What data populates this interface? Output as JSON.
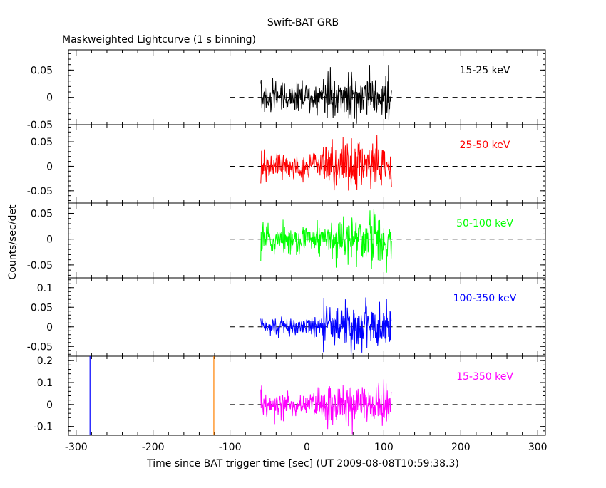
{
  "chart_data": {
    "type": "line",
    "title": "Swift-BAT GRB",
    "subtitle": "Maskweighted Lightcurve (1 s binning)",
    "xlabel": "Time since BAT trigger time [sec] (UT 2009-08-08T10:59:38.3)",
    "ylabel": "Counts/sec/det",
    "xlim": [
      -310,
      310
    ],
    "x_ticks": [
      -300,
      -200,
      -100,
      0,
      100,
      200,
      300
    ],
    "x_data_range": [
      -60,
      110
    ],
    "grid": false,
    "panels": [
      {
        "band": "15-25 keV",
        "color": "#000000",
        "ylim": [
          -0.05,
          0.087
        ],
        "y_ticks": [
          -0.05,
          0,
          0.05
        ],
        "y_tick_labels": [
          "-0.05",
          "0",
          "0.05"
        ],
        "series": [
          {
            "x_start": -60,
            "x_end": 110,
            "seed": 11,
            "segments": [
              {
                "from": -60,
                "to": 20,
                "sigma": 0.014
              },
              {
                "from": 20,
                "to": 110,
                "sigma": 0.022
              }
            ]
          }
        ]
      },
      {
        "band": "25-50 keV",
        "color": "#ff0000",
        "ylim": [
          -0.075,
          0.085
        ],
        "y_ticks": [
          -0.05,
          0,
          0.05
        ],
        "y_tick_labels": [
          "-0.05",
          "0",
          "0.05"
        ],
        "series": [
          {
            "x_start": -60,
            "x_end": 110,
            "seed": 23,
            "segments": [
              {
                "from": -60,
                "to": 20,
                "sigma": 0.015
              },
              {
                "from": 20,
                "to": 110,
                "sigma": 0.022
              }
            ]
          }
        ]
      },
      {
        "band": "50-100 keV",
        "color": "#00ff00",
        "ylim": [
          -0.075,
          0.07
        ],
        "y_ticks": [
          -0.05,
          0,
          0.05
        ],
        "y_tick_labels": [
          "-0.05",
          "0",
          "0.05"
        ],
        "series": [
          {
            "x_start": -60,
            "x_end": 110,
            "seed": 37,
            "segments": [
              {
                "from": -60,
                "to": 30,
                "sigma": 0.014
              },
              {
                "from": 30,
                "to": 110,
                "sigma": 0.024
              }
            ]
          }
        ]
      },
      {
        "band": "100-350 keV",
        "color": "#0000ff",
        "ylim": [
          -0.075,
          0.125
        ],
        "y_ticks": [
          -0.05,
          0,
          0.05,
          0.1
        ],
        "y_tick_labels": [
          "-0.05",
          "0",
          "0.05",
          "0.1"
        ],
        "series": [
          {
            "x_start": -60,
            "x_end": 110,
            "seed": 53,
            "segments": [
              {
                "from": -60,
                "to": 20,
                "sigma": 0.012
              },
              {
                "from": 20,
                "to": 110,
                "sigma": 0.03
              }
            ]
          }
        ]
      },
      {
        "band": "15-350 keV",
        "color": "#ff00ff",
        "ylim": [
          -0.14,
          0.22
        ],
        "y_ticks": [
          -0.1,
          0,
          0.1,
          0.2
        ],
        "y_tick_labels": [
          "-0.1",
          "0",
          "0.1",
          "0.2"
        ],
        "vlines": [
          {
            "x": -282,
            "color": "#0000ff"
          },
          {
            "x": -121,
            "color": "#ff8000"
          }
        ],
        "series": [
          {
            "x_start": -60,
            "x_end": 110,
            "seed": 71,
            "segments": [
              {
                "from": -60,
                "to": 20,
                "sigma": 0.028
              },
              {
                "from": 20,
                "to": 110,
                "sigma": 0.045
              }
            ]
          }
        ]
      }
    ],
    "zero_line": {
      "from": -100,
      "to": 310,
      "style": "dashed",
      "color": "#000000"
    }
  }
}
